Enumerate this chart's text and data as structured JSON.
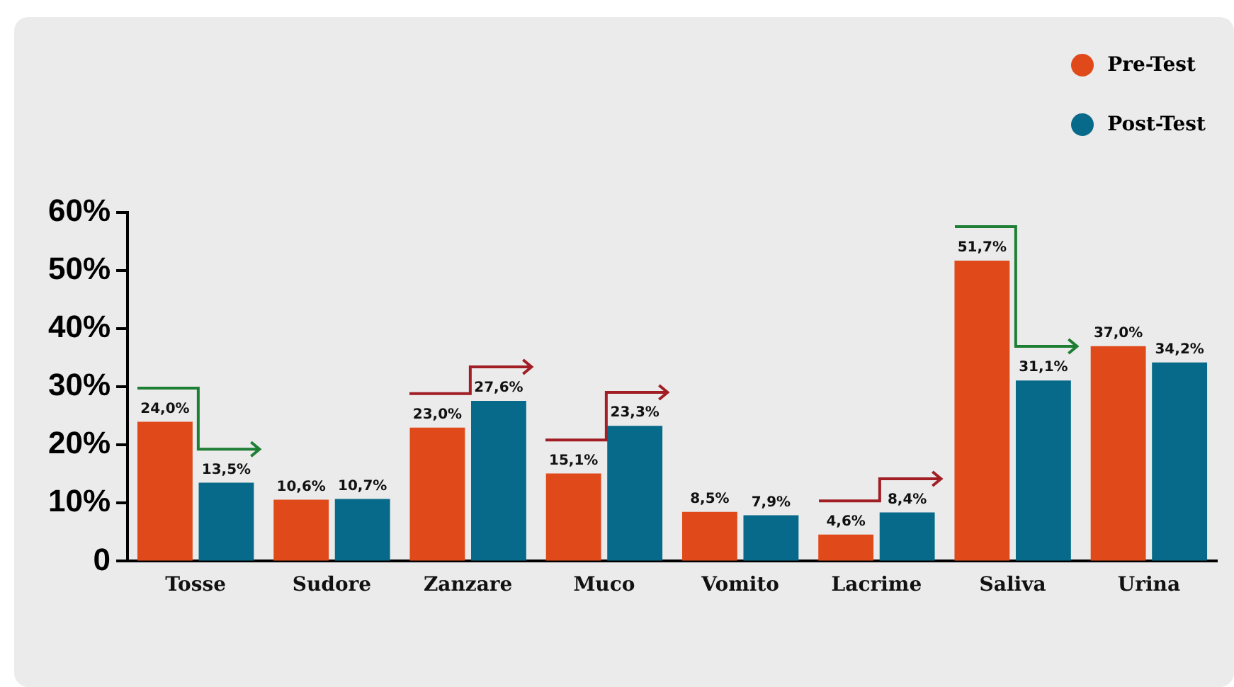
{
  "chart_data": {
    "type": "bar",
    "categories": [
      "Tosse",
      "Sudore",
      "Zanzare",
      "Muco",
      "Vomito",
      "Lacrime",
      "Saliva",
      "Urina"
    ],
    "series": [
      {
        "name": "Pre-Test",
        "color": "#e04a1a",
        "values": [
          24.0,
          10.6,
          23.0,
          15.1,
          8.5,
          4.6,
          51.7,
          37.0
        ],
        "value_labels": [
          "24,0%",
          "10,6%",
          "23,0%",
          "15,1%",
          "8,5%",
          "4,6%",
          "51,7%",
          "37,0%"
        ]
      },
      {
        "name": "Post-Test",
        "color": "#076a8a",
        "values": [
          13.5,
          10.7,
          27.6,
          23.3,
          7.9,
          8.4,
          31.1,
          34.2
        ],
        "value_labels": [
          "13,5%",
          "10,7%",
          "27,6%",
          "23,3%",
          "7,9%",
          "8,4%",
          "31,1%",
          "34,2%"
        ]
      }
    ],
    "ylim": [
      0,
      60
    ],
    "yticks": [
      {
        "value": 0,
        "label": "0"
      },
      {
        "value": 10,
        "label": "10%"
      },
      {
        "value": 20,
        "label": "20%"
      },
      {
        "value": 30,
        "label": "30%"
      },
      {
        "value": 40,
        "label": "40%"
      },
      {
        "value": 50,
        "label": "50%"
      },
      {
        "value": 60,
        "label": "60%"
      }
    ],
    "grid": false,
    "legend": "top right"
  }
}
